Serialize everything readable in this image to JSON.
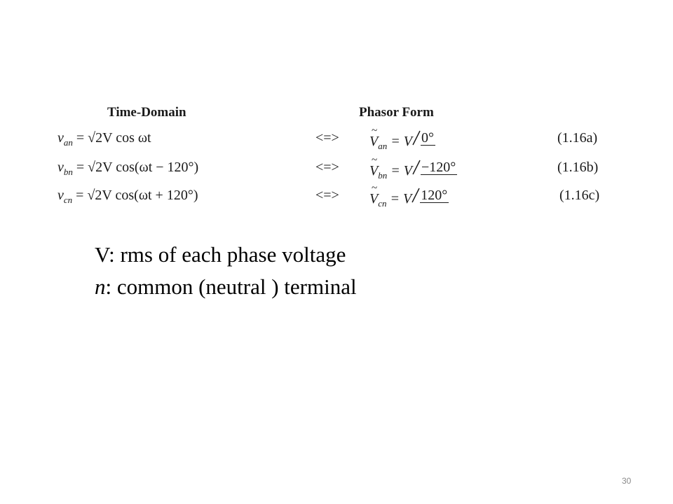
{
  "headers": {
    "time": "Time-Domain",
    "phasor": "Phasor Form"
  },
  "equations": [
    {
      "v": "v",
      "sub": "an",
      "rhs": "= √2V cos ωt",
      "arrow": "<=>",
      "pv": "V",
      "psub": "an",
      "eq": "= V",
      "angle": "0°",
      "label": "(1.16a)"
    },
    {
      "v": "v",
      "sub": "bn",
      "rhs": "= √2V cos(ωt − 120°)",
      "arrow": "<=>",
      "pv": "V",
      "psub": "bn",
      "eq": "= V",
      "angle": "−120°",
      "label": "(1.16b)"
    },
    {
      "v": "v",
      "sub": "cn",
      "rhs": "= √2V cos(ωt + 120°)",
      "arrow": "<=>",
      "pv": "V",
      "psub": "cn",
      "eq": "= V",
      "angle": "120°",
      "label": "(1.16c)"
    }
  ],
  "notes": {
    "line1": "V: rms of each phase voltage",
    "line2_var": "n",
    "line2_rest": ": common (neutral ) terminal"
  },
  "page_number": "30"
}
